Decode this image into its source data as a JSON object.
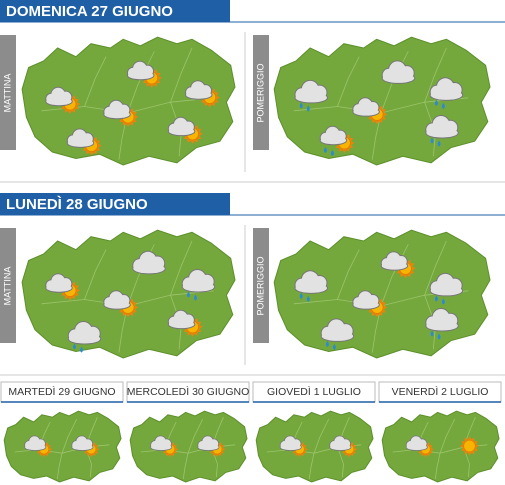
{
  "days": [
    {
      "title": "DOMENICA 27 GIUGNO",
      "panels": [
        {
          "label": "MATTINA"
        },
        {
          "label": "POMERIGGIO"
        }
      ]
    },
    {
      "title": "LUNEDÌ 28 GIUGNO",
      "panels": [
        {
          "label": "MATTINA"
        },
        {
          "label": "POMERIGGIO"
        }
      ]
    }
  ],
  "outlook": [
    {
      "title": "MARTEDÌ 29 GIUGNO"
    },
    {
      "title": "MERCOLEDÌ 30 GIUGNO"
    },
    {
      "title": "GIOVEDÌ 1 LUGLIO"
    },
    {
      "title": "VENERDÌ 2 LUGLIO"
    }
  ]
}
